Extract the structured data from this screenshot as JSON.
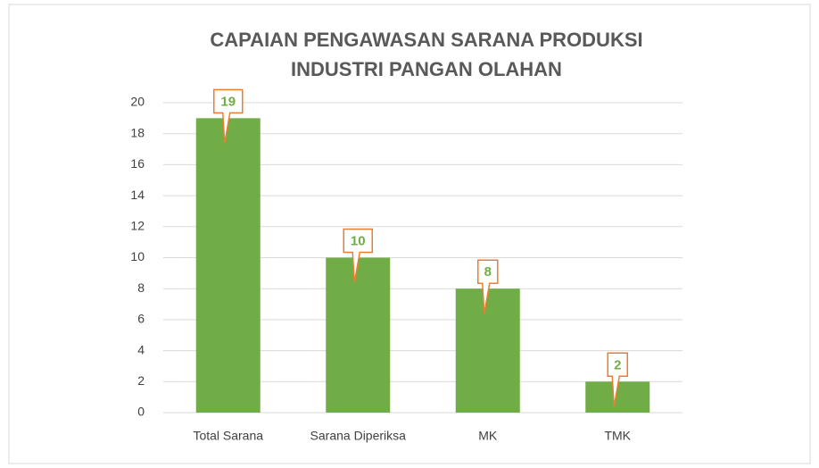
{
  "chart_data": {
    "type": "bar",
    "title": [
      "CAPAIAN PENGAWASAN SARANA PRODUKSI",
      "INDUSTRI PANGAN OLAHAN"
    ],
    "categories": [
      "Total Sarana",
      "Sarana Diperiksa",
      "MK",
      "TMK"
    ],
    "values": [
      19,
      10,
      8,
      2
    ],
    "color": "#70ad47",
    "ylim": [
      0,
      20
    ],
    "yticks": [
      0,
      2,
      4,
      6,
      8,
      10,
      12,
      14,
      16,
      18,
      20
    ],
    "grid": true
  }
}
